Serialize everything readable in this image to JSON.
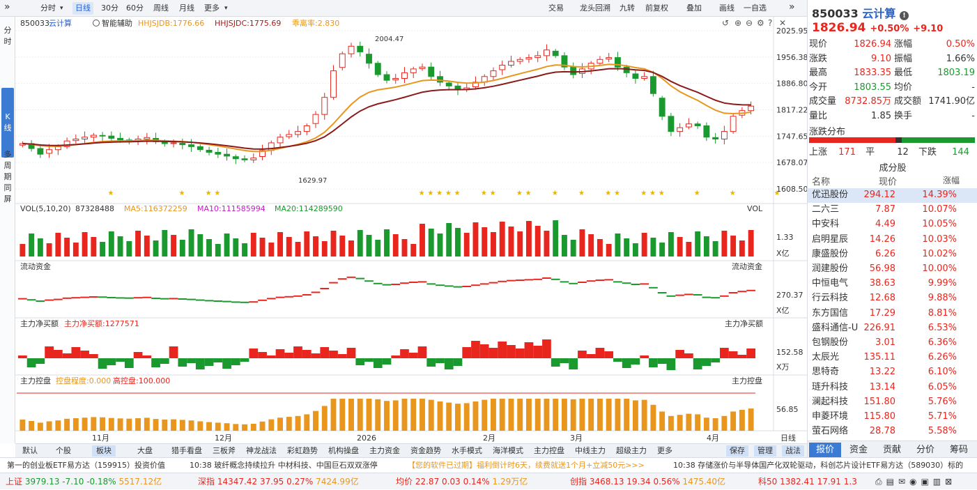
{
  "toolbar": {
    "periods": [
      "分时",
      "日线",
      "30分",
      "60分",
      "周线",
      "月线",
      "更多"
    ],
    "active": "日线",
    "right": [
      "交易",
      "龙头回溯",
      "九转",
      "前复权",
      "叠加",
      "画线",
      "一自选"
    ]
  },
  "left": {
    "fenshi": "分时",
    "kline": "K线",
    "multi": "多周期同屏"
  },
  "main": {
    "code": "850033",
    "name": "云计算",
    "assist": "智能辅助",
    "ind1": "HHJSJDB:1776.66",
    "ind2": "HHJSJDC:1775.69",
    "ind3": "乖离率:2.830",
    "ticks": [
      "2025.95",
      "1956.38",
      "1886.80",
      "1817.22",
      "1747.65",
      "1678.07",
      "1608.50"
    ],
    "high_label": "2004.47",
    "low_label": "1629.97"
  },
  "vol": {
    "title": "VOL(5,10,20)",
    "value": "87328488",
    "ma5": "MA5:116372259",
    "ma10": "MA10:111585994",
    "ma20": "MA20:114289590",
    "label": "VOL",
    "tick": "1.33",
    "unit": "X亿"
  },
  "flow": {
    "title": "流动资金",
    "label": "流动资金",
    "tick": "270.37",
    "unit": "X亿"
  },
  "net": {
    "title": "主力净买额",
    "value": "主力净买额:1277571",
    "label": "主力净买额",
    "tick": "152.58",
    "unit": "X万"
  },
  "ctrl": {
    "title": "主力控盘",
    "degree": "控盘程度:0.000",
    "high": "高控盘:100.000",
    "label": "主力控盘",
    "tick": "56.85"
  },
  "xaxis": {
    "labels": [
      "11月",
      "12月",
      "2026",
      "2月",
      "3月",
      "4月"
    ],
    "period": "日线"
  },
  "bottom_tabs": [
    "默认",
    "个股",
    "板块",
    "大盘",
    "猎手看盘",
    "三板斧",
    "神龙战法",
    "彩虹趋势",
    "机构操盘",
    "主力资金",
    "资金趋势",
    "水手模式",
    "海洋模式",
    "主力控盘",
    "中线主力",
    "超级主力",
    "更多"
  ],
  "bottom_active": "板块",
  "bottom_right": [
    "保存",
    "管理",
    "战法"
  ],
  "quote": {
    "code": "850033",
    "name": "云计算",
    "price": "1826.94",
    "chg_pct": "+0.50%",
    "chg": "+9.10",
    "rows": [
      [
        "现价",
        "1826.94",
        "涨幅",
        "0.50%"
      ],
      [
        "涨跌",
        "9.10",
        "振幅",
        "1.66%"
      ],
      [
        "最高",
        "1833.35",
        "最低",
        "1803.19"
      ],
      [
        "今开",
        "1803.55",
        "均价",
        "-"
      ],
      [
        "成交量",
        "8732.85万",
        "成交额",
        "1741.90亿"
      ],
      [
        "量比",
        "1.85",
        "换手",
        "-"
      ]
    ],
    "dist_title": "涨跌分布",
    "up_label": "上涨",
    "up": "171",
    "flat_label": "平",
    "flat": "12",
    "down_label": "下跌",
    "down": "144",
    "cfg_title": "成分股",
    "cols": [
      "名称",
      "现价",
      "涨幅"
    ],
    "stocks": [
      [
        "优迅股份",
        "294.12",
        "14.39%"
      ],
      [
        "二六三",
        "7.87",
        "10.07%"
      ],
      [
        "中安科",
        "4.49",
        "10.05%"
      ],
      [
        "启明星辰",
        "14.26",
        "10.03%"
      ],
      [
        "康盛股份",
        "6.26",
        "10.02%"
      ],
      [
        "润建股份",
        "56.98",
        "10.00%"
      ],
      [
        "中恒电气",
        "38.63",
        "9.99%"
      ],
      [
        "行云科技",
        "12.68",
        "9.88%"
      ],
      [
        "东方国信",
        "17.29",
        "8.81%"
      ],
      [
        "盛科通信-U",
        "226.91",
        "6.53%"
      ],
      [
        "包钢股份",
        "3.01",
        "6.36%"
      ],
      [
        "太辰光",
        "135.11",
        "6.26%"
      ],
      [
        "思特奇",
        "13.22",
        "6.10%"
      ],
      [
        "琏升科技",
        "13.14",
        "6.05%"
      ],
      [
        "澜起科技",
        "151.80",
        "5.76%"
      ],
      [
        "申菱环境",
        "115.80",
        "5.71%"
      ],
      [
        "萤石网络",
        "28.78",
        "5.58%"
      ]
    ],
    "tabs": [
      "报价",
      "资金",
      "贡献",
      "分价",
      "筹码"
    ],
    "tab_active": "报价"
  },
  "ticker": {
    "t1": "第一的创业板ETF易方达（159915）投资价值",
    "t2": "10:38 玻纤概念持续拉升 中材科技、中国巨石双双涨停",
    "t3": "【您的软件已过期】福利倒计时6天，续费就送1个月+立减50元>>>",
    "t4": "10:38 存储涨价与半导体国产化双轮驱动，科创芯片设计ETF易方达（589030）标的"
  },
  "status": [
    [
      "上证",
      "3979.13",
      "-7.10",
      "-0.18%",
      "5517.12亿"
    ],
    [
      "深指",
      "14347.42",
      "37.95",
      "0.27%",
      "7424.99亿"
    ],
    [
      "均价",
      "22.87",
      "0.03",
      "0.14%",
      "1.29万亿"
    ],
    [
      "创指",
      "3468.13",
      "19.34",
      "0.56%",
      "1475.40亿"
    ],
    [
      "科50",
      "1382.41",
      "17.91",
      "1.3",
      ""
    ]
  ],
  "chart_data": {
    "type": "candlestick",
    "ylim": [
      1608.5,
      2025.95
    ],
    "high": 2004.47,
    "low": 1629.97,
    "closes": [
      1728,
      1715,
      1700,
      1712,
      1720,
      1735,
      1740,
      1745,
      1750,
      1748,
      1742,
      1738,
      1736,
      1740,
      1744,
      1733,
      1728,
      1730,
      1725,
      1720,
      1712,
      1705,
      1700,
      1695,
      1688,
      1685,
      1690,
      1710,
      1730,
      1745,
      1752,
      1760,
      1775,
      1805,
      1850,
      1920,
      1965,
      1985,
      1970,
      1940,
      1910,
      1895,
      1900,
      1915,
      1925,
      1930,
      1905,
      1890,
      1880,
      1870,
      1875,
      1890,
      1905,
      1920,
      1935,
      1945,
      1950,
      1955,
      1960,
      1975,
      1960,
      1930,
      1910,
      1925,
      1940,
      1950,
      1955,
      1930,
      1915,
      1900,
      1905,
      1860,
      1800,
      1760,
      1770,
      1780,
      1775,
      1745,
      1740,
      1760,
      1800,
      1815,
      1826.94
    ]
  }
}
